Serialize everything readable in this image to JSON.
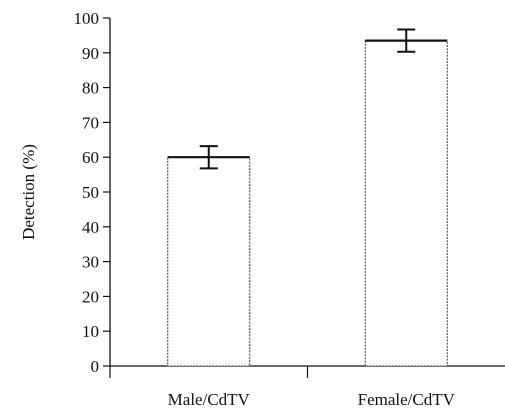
{
  "chart_data": {
    "type": "bar",
    "title": "",
    "xlabel": "",
    "ylabel": "Detection (%)",
    "categories": [
      "Male/CdTV",
      "Female/CdTV"
    ],
    "values": [
      60,
      93.5
    ],
    "errors": [
      3.2,
      3.2
    ],
    "ylim": [
      0,
      100
    ],
    "yticks": [
      0,
      10,
      20,
      30,
      40,
      50,
      60,
      70,
      80,
      90,
      100
    ],
    "grid": false,
    "legend": "none"
  }
}
